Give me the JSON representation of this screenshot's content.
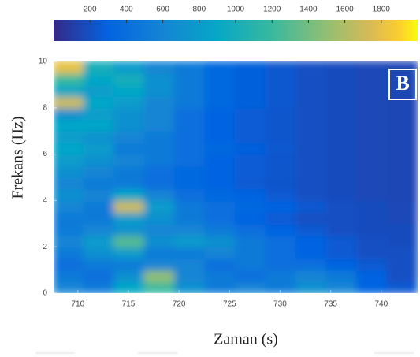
{
  "chart_data": {
    "type": "heatmap",
    "annotation": "B",
    "xlabel": "Zaman (s)",
    "ylabel": "Frekans (Hz)",
    "colormap": "parula",
    "clim": [
      0,
      2000
    ],
    "colorbar_ticks": [
      200,
      400,
      600,
      800,
      1000,
      1200,
      1400,
      1600,
      1800
    ],
    "xlim": [
      707.6,
      743.6
    ],
    "ylim": [
      0,
      10
    ],
    "xticks": [
      710,
      715,
      720,
      725,
      730,
      735,
      740
    ],
    "yticks": [
      0,
      2,
      4,
      6,
      8,
      10
    ],
    "x": [
      709.1,
      712.1,
      715.1,
      718.1,
      721.1,
      724.1,
      727.1,
      730.1,
      733.1,
      736.1,
      739.1,
      742.1
    ],
    "y": [
      0.25,
      0.75,
      1.25,
      1.75,
      2.25,
      2.75,
      3.25,
      3.75,
      4.25,
      4.75,
      5.25,
      5.75,
      6.25,
      6.75,
      7.25,
      7.75,
      8.25,
      8.75,
      9.25,
      9.75
    ],
    "values": [
      [
        600,
        500,
        900,
        1200,
        700,
        500,
        600,
        500,
        700,
        600,
        300,
        250
      ],
      [
        500,
        400,
        700,
        1500,
        600,
        500,
        400,
        500,
        600,
        500,
        300,
        200
      ],
      [
        400,
        500,
        500,
        600,
        600,
        400,
        500,
        400,
        400,
        300,
        250,
        200
      ],
      [
        500,
        700,
        800,
        500,
        500,
        600,
        500,
        400,
        300,
        250,
        200,
        200
      ],
      [
        600,
        800,
        1300,
        700,
        800,
        700,
        500,
        400,
        300,
        250,
        200,
        180
      ],
      [
        500,
        600,
        700,
        600,
        600,
        500,
        400,
        300,
        250,
        200,
        180,
        180
      ],
      [
        500,
        500,
        800,
        700,
        500,
        400,
        300,
        250,
        200,
        200,
        180,
        160
      ],
      [
        600,
        500,
        1700,
        800,
        500,
        400,
        350,
        300,
        250,
        200,
        180,
        160
      ],
      [
        700,
        600,
        900,
        600,
        400,
        350,
        300,
        250,
        200,
        180,
        160,
        150
      ],
      [
        600,
        500,
        500,
        400,
        350,
        300,
        250,
        220,
        200,
        180,
        160,
        150
      ],
      [
        700,
        600,
        500,
        400,
        350,
        300,
        260,
        230,
        200,
        180,
        160,
        150
      ],
      [
        800,
        700,
        600,
        500,
        400,
        300,
        260,
        230,
        200,
        180,
        160,
        150
      ],
      [
        900,
        800,
        500,
        500,
        400,
        350,
        280,
        240,
        200,
        180,
        160,
        150
      ],
      [
        800,
        700,
        600,
        500,
        400,
        300,
        260,
        230,
        200,
        180,
        160,
        150
      ],
      [
        900,
        900,
        700,
        600,
        400,
        300,
        260,
        230,
        200,
        180,
        160,
        150
      ],
      [
        700,
        800,
        700,
        600,
        400,
        300,
        260,
        230,
        200,
        180,
        160,
        150
      ],
      [
        1700,
        900,
        800,
        600,
        500,
        350,
        280,
        240,
        200,
        180,
        160,
        150
      ],
      [
        900,
        800,
        900,
        700,
        500,
        350,
        280,
        240,
        200,
        180,
        160,
        150
      ],
      [
        1200,
        900,
        1000,
        700,
        500,
        350,
        280,
        240,
        200,
        180,
        160,
        150
      ],
      [
        1800,
        1000,
        800,
        600,
        500,
        350,
        280,
        240,
        200,
        180,
        160,
        150
      ]
    ]
  }
}
